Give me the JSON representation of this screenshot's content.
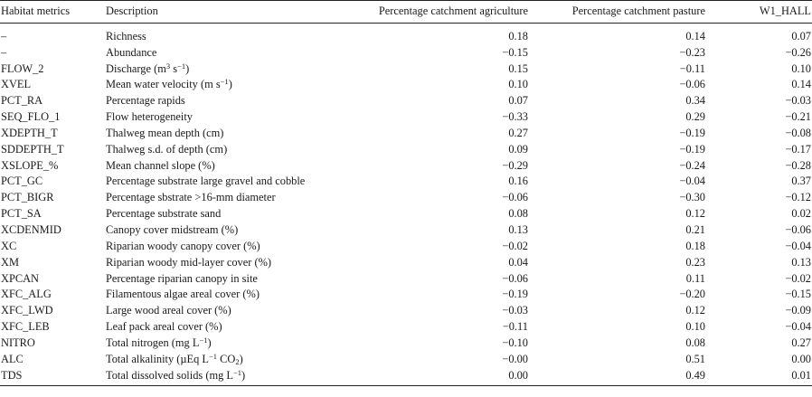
{
  "columns": {
    "metric": "Habitat metrics",
    "description": "Description",
    "agriculture": "Percentage catchment agriculture",
    "pasture": "Percentage catchment pasture",
    "hall": "W1_HALL"
  },
  "rows": [
    {
      "metric": "–",
      "description": "Richness",
      "agriculture": "0.18",
      "pasture": "0.14",
      "hall": "0.07"
    },
    {
      "metric": "–",
      "description": "Abundance",
      "agriculture": "−0.15",
      "pasture": "−0.23",
      "hall": "−0.26"
    },
    {
      "metric": "FLOW_2",
      "description": "Discharge",
      "unit_pre": "(m",
      "unit_sup1": "3",
      "unit_mid": " s",
      "unit_sup2": "−1",
      "unit_post": ")",
      "agriculture": "0.15",
      "pasture": "−0.11",
      "hall": "0.10"
    },
    {
      "metric": "XVEL",
      "description": "Mean water velocity",
      "unit_pre": "(m s",
      "unit_sup1": "−1",
      "unit_post": ")",
      "agriculture": "0.10",
      "pasture": "−0.06",
      "hall": "0.14"
    },
    {
      "metric": "PCT_RA",
      "description": "Percentage rapids",
      "agriculture": "0.07",
      "pasture": "0.34",
      "hall": "−0.03"
    },
    {
      "metric": "SEQ_FLO_1",
      "description": "Flow heterogeneity",
      "agriculture": "−0.33",
      "pasture": "0.29",
      "hall": "−0.21"
    },
    {
      "metric": "XDEPTH_T",
      "description": "Thalweg mean depth (cm)",
      "agriculture": "0.27",
      "pasture": "−0.19",
      "hall": "−0.08"
    },
    {
      "metric": "SDDEPTH_T",
      "description": "Thalweg s.d. of depth (cm)",
      "agriculture": "0.09",
      "pasture": "−0.19",
      "hall": "−0.17"
    },
    {
      "metric": "XSLOPE_%",
      "description": "Mean channel slope (%)",
      "agriculture": "−0.29",
      "pasture": "−0.24",
      "hall": "−0.28"
    },
    {
      "metric": "PCT_GC",
      "description": "Percentage substrate large gravel and cobble",
      "agriculture": "0.16",
      "pasture": "−0.04",
      "hall": "0.37"
    },
    {
      "metric": "PCT_BIGR",
      "description": "Percentage sbstrate >16-mm diameter",
      "agriculture": "−0.06",
      "pasture": "−0.30",
      "hall": "−0.12"
    },
    {
      "metric": "PCT_SA",
      "description": "Percentage substrate sand",
      "agriculture": "0.08",
      "pasture": "0.12",
      "hall": "0.02"
    },
    {
      "metric": "XCDENMID",
      "description": "Canopy cover midstream (%)",
      "agriculture": "0.13",
      "pasture": "0.21",
      "hall": "−0.06"
    },
    {
      "metric": "XC",
      "description": "Riparian woody canopy cover (%)",
      "agriculture": "−0.02",
      "pasture": "0.18",
      "hall": "−0.04"
    },
    {
      "metric": "XM",
      "description": "Riparian woody mid-layer cover (%)",
      "agriculture": "0.04",
      "pasture": "0.23",
      "hall": "0.13"
    },
    {
      "metric": "XPCAN",
      "description": "Percentage riparian canopy in site",
      "agriculture": "−0.06",
      "pasture": "0.11",
      "hall": "−0.02"
    },
    {
      "metric": "XFC_ALG",
      "description": "Filamentous algae areal cover (%)",
      "agriculture": "−0.19",
      "pasture": "−0.20",
      "hall": "−0.15"
    },
    {
      "metric": "XFC_LWD",
      "description": "Large wood areal cover (%)",
      "agriculture": "−0.03",
      "pasture": "0.12",
      "hall": "−0.09"
    },
    {
      "metric": "XFC_LEB",
      "description": "Leaf pack areal cover (%)",
      "agriculture": "−0.11",
      "pasture": "0.10",
      "hall": "−0.04"
    },
    {
      "metric": "NITRO",
      "description": "Total nitrogen",
      "unit_pre": "(mg L",
      "unit_sup1": "−1",
      "unit_post": ")",
      "agriculture": "−0.10",
      "pasture": "0.08",
      "hall": "0.27"
    },
    {
      "metric": "ALC",
      "description": "Total alkalinity",
      "unit_pre": "(µEq L",
      "unit_sup1": "−1",
      "unit_mid": " CO",
      "unit_sub": "2",
      "unit_post": ")",
      "agriculture": "−0.00",
      "pasture": "0.51",
      "hall": "0.00"
    },
    {
      "metric": "TDS",
      "description": "Total dissolved solids",
      "unit_pre": "(mg L",
      "unit_sup1": "−1",
      "unit_post": ")",
      "agriculture": "0.00",
      "pasture": "0.49",
      "hall": "0.01"
    }
  ]
}
